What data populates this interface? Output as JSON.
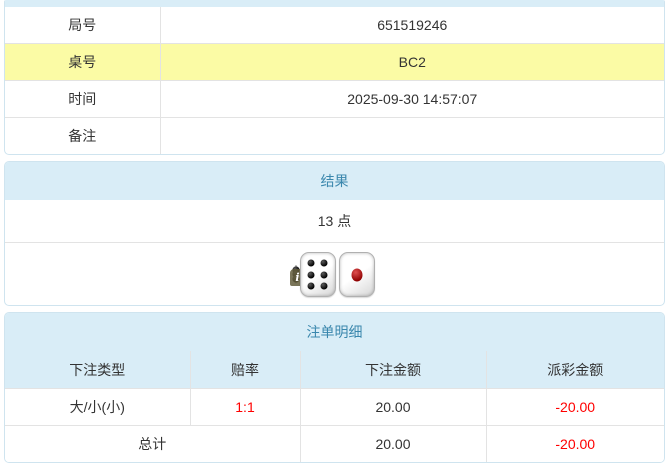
{
  "colors": {
    "panel_border": "#cfe4ef",
    "header_bg": "#d9edf7",
    "header_text": "#3a87ad",
    "grid_line": "#e3e3e3",
    "highlight_bg": "#fbfba5",
    "text": "#333333",
    "negative": "#ff0000"
  },
  "game_info": {
    "rows": [
      {
        "label": "局号",
        "value": "651519246"
      },
      {
        "label": "桌号",
        "value": "BC2"
      },
      {
        "label": "时间",
        "value": "2025-09-30 14:57:07"
      },
      {
        "label": "备注",
        "value": ""
      }
    ]
  },
  "result_panel": {
    "title": "结果",
    "points": "13 点",
    "dice": [
      6,
      6,
      1
    ],
    "info_badge": "i"
  },
  "bets_panel": {
    "title": "注单明细",
    "columns": [
      "下注类型",
      "赔率",
      "下注金额",
      "派彩金额"
    ],
    "rows": [
      {
        "bet_type": "大/小(小)",
        "odds": "1:1",
        "bet_amount": "20.00",
        "payout_amount": "-20.00"
      }
    ],
    "total": {
      "label": "总计",
      "bet_amount": "20.00",
      "payout_amount": "-20.00"
    }
  }
}
